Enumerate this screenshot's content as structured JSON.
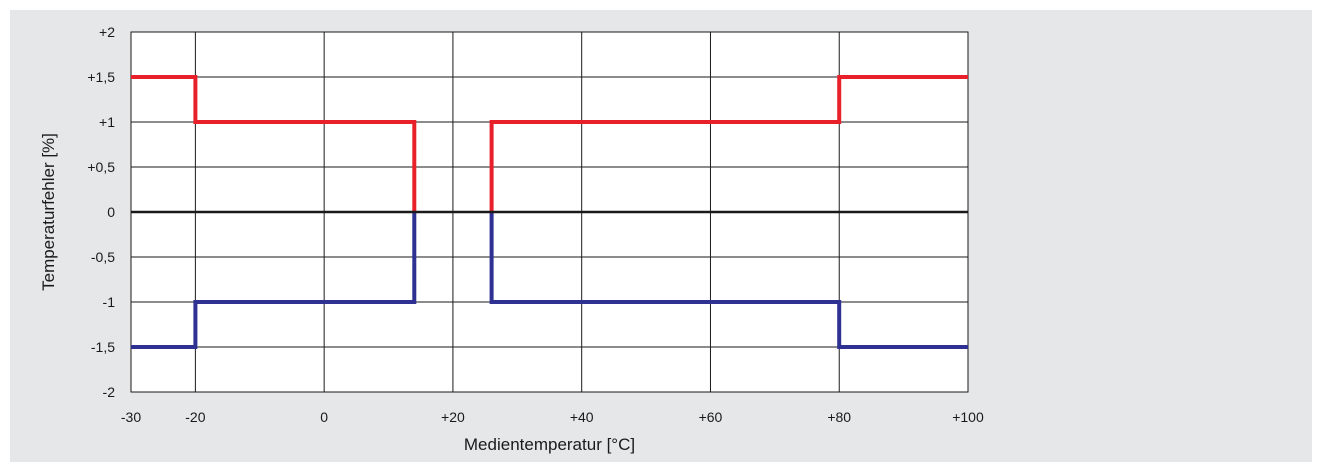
{
  "chart_data": {
    "type": "line",
    "title": "",
    "xlabel": "Medientemperatur [°C]",
    "ylabel": "Temperaturfehler [%]",
    "xlim": [
      -30,
      100
    ],
    "ylim": [
      -2,
      2
    ],
    "x_tick_values": [
      -30,
      -20,
      0,
      20,
      40,
      60,
      80,
      100
    ],
    "x_tick_labels": [
      "-30",
      "-20",
      "0",
      "+20",
      "+40",
      "+60",
      "+80",
      "+100"
    ],
    "y_tick_values": [
      2,
      1.5,
      1,
      0.5,
      0,
      -0.5,
      -1,
      -1.5,
      -2
    ],
    "y_tick_labels": [
      "+2",
      "+1,5",
      "+1",
      "+0,5",
      "0",
      "-0,5",
      "-1",
      "-1,5",
      "-2"
    ],
    "vertical_gridlines_at": [
      -20,
      0,
      20,
      40,
      60,
      80,
      100
    ],
    "grid": true,
    "plot_background": "#ffffff",
    "figure_background": "#e6e7e8",
    "series": [
      {
        "color": "#e8202a",
        "step_points": [
          [
            -30,
            1.5
          ],
          [
            -20,
            1.5
          ],
          [
            -20,
            1
          ],
          [
            14,
            1
          ],
          [
            14,
            0
          ]
        ]
      },
      {
        "color": "#e8202a",
        "step_points": [
          [
            26,
            0
          ],
          [
            26,
            1
          ],
          [
            80,
            1
          ],
          [
            80,
            1.5
          ],
          [
            100,
            1.5
          ]
        ]
      },
      {
        "color": "#2e3192",
        "step_points": [
          [
            -30,
            -1.5
          ],
          [
            -20,
            -1.5
          ],
          [
            -20,
            -1
          ],
          [
            14,
            -1
          ],
          [
            14,
            0
          ]
        ]
      },
      {
        "color": "#2e3192",
        "step_points": [
          [
            26,
            0
          ],
          [
            26,
            -1
          ],
          [
            80,
            -1
          ],
          [
            80,
            -1.5
          ],
          [
            100,
            -1.5
          ]
        ]
      }
    ]
  }
}
